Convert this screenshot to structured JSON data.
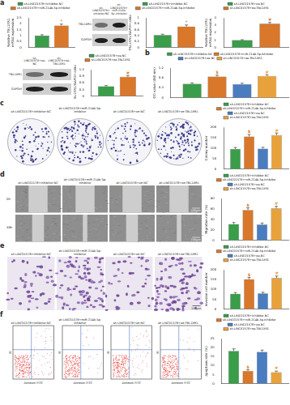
{
  "panel_labels": [
    "a",
    "b",
    "c",
    "d",
    "e",
    "f"
  ],
  "blots": [
    {
      "lanes": [
        "sh-LINC01578+inhibitor-NC",
        "sh-LINC01578+miR-214b-5p-inhibitor"
      ],
      "bands": [
        "TBL1XR1",
        "GAPDH"
      ]
    },
    {
      "lanes": [
        "sh-LINC01578+oe-NC",
        "sh-LINC01578+oe-TBL1XR1"
      ],
      "bands": [
        "TBL1XR1",
        "GAPDH"
      ]
    }
  ],
  "colony_images": {
    "columns": [
      "sh-LINC01578+inhibitor-NC",
      "sh-LINC01578+miR-214b-5p-inhibitor",
      "sh-LINC01578+oe-NC",
      "sh-LINC01578+oe-TBL1XR1"
    ]
  },
  "wound_images": {
    "columns": [
      "sh-LINC01578+inhibitor-NC",
      "sh-LINC01578+miR-214b-5p-inhibitor",
      "sh-LINC01578+oe-NC",
      "sh-LINC01578+oe-TBL1XR1"
    ],
    "rows": [
      "0h",
      "48h"
    ],
    "scale_bar": "100μm"
  },
  "transwell_images": {
    "columns": [
      "sh-LINC01578+inhibitor-NC",
      "sh-LINC01578+miR-214b-5p-inhibitor",
      "sh-LINC01578+oe-NC",
      "sh-LINC01578+oe-TBL1XR1"
    ],
    "scale_bar": "100μm"
  },
  "flow_images": {
    "columns": [
      "sh-LINC01578+inhibitor-NC",
      "sh-LINC01578+miR-214b-5p-inhibitor",
      "sh-LINC01578+oe-NC",
      "sh-LINC01578+oe-TBL1XR1"
    ],
    "x_label": "Annexin FITC",
    "y_label": "PI"
  },
  "chart_data": [
    {
      "type": "bar",
      "y_label": [
        "Relative TBL1XR1",
        "mRNA expression"
      ],
      "categories": [
        null
      ],
      "series": [
        {
          "name": "sh-LINC01578+inhibitor-NC",
          "color": "#3a9d4a",
          "values": [
            1.0
          ],
          "errors": [
            0.08
          ]
        },
        {
          "name": "sh-LINC01578+miR-214b-5p-inhibitor",
          "color": "#d9772b",
          "values": [
            1.86
          ],
          "errors": [
            0.11
          ],
          "annotation": "*"
        }
      ],
      "ylim": [
        0,
        2.5
      ],
      "yticks": [
        0,
        0.5,
        1,
        1.5,
        2,
        2.5
      ],
      "legend": "top",
      "grid": false,
      "tick_labels": "y"
    },
    {
      "type": "bar",
      "y_label": "TBL1XR1/GAPDH ratio",
      "categories": [
        null
      ],
      "series": [
        {
          "name": "sh-LINC01578+inhibitor-NC",
          "color": "#3a9d4a",
          "values": [
            0.42
          ],
          "errors": [
            0.03
          ]
        },
        {
          "name": "sh-LINC01578+miR-214b-5p-inhibitor",
          "color": "#d9772b",
          "values": [
            0.71
          ],
          "errors": [
            0.05
          ],
          "annotation": "*"
        }
      ],
      "ylim": [
        0,
        1
      ],
      "yticks": [
        0,
        0.2,
        0.4,
        0.6,
        0.8,
        1
      ],
      "legend": "top",
      "grid": false,
      "tick_labels": "y"
    },
    {
      "type": "bar",
      "y_label": [
        "Relative TBL1XR1",
        "mRNA expression"
      ],
      "categories": [
        null
      ],
      "series": [
        {
          "name": "sh-LINC01578+oe-NC",
          "color": "#3a9d4a",
          "values": [
            1.0
          ],
          "errors": [
            0.06
          ]
        },
        {
          "name": "sh-LINC01578+oe-TBL1XR1",
          "color": "#d9772b",
          "values": [
            3.2
          ],
          "errors": [
            0.18
          ],
          "annotation": "#"
        }
      ],
      "ylim": [
        0,
        4
      ],
      "yticks": [
        0,
        1,
        2,
        3,
        4
      ],
      "legend": "top",
      "grid": false,
      "tick_labels": "y"
    },
    {
      "type": "bar",
      "y_label": "TBL1XR1/GAPDH ratio",
      "categories": [
        null
      ],
      "series": [
        {
          "name": "sh-LINC01578+oe-NC",
          "color": "#3a9d4a",
          "values": [
            0.45
          ],
          "errors": [
            0.03
          ]
        },
        {
          "name": "sh-LINC01578+oe-TBL1XR1",
          "color": "#d9772b",
          "values": [
            0.88
          ],
          "errors": [
            0.05
          ],
          "annotation": "#"
        }
      ],
      "ylim": [
        0,
        1.2
      ],
      "yticks": [
        0,
        0.3,
        0.6,
        0.9,
        1.2
      ],
      "legend": "top",
      "grid": false,
      "tick_labels": "y"
    },
    {
      "type": "bar",
      "y_label": "OD value (450 nm)",
      "categories": [
        null
      ],
      "series": [
        {
          "name": "sh-LINC01578+inhibitor-NC",
          "color": "#3a9d4a",
          "values": [
            0.56
          ],
          "errors": [
            0.04
          ]
        },
        {
          "name": "sh-LINC01578+miR-214b-5p-inhibitor",
          "color": "#d9772b",
          "values": [
            0.86
          ],
          "errors": [
            0.05
          ],
          "annotation": "$"
        },
        {
          "name": "sh-LINC01578+oe-NC",
          "color": "#4a7cc0",
          "values": [
            0.55
          ],
          "errors": [
            0.04
          ]
        },
        {
          "name": "sh-LINC01578+oe-TBL1XR1",
          "color": "#e9a23b",
          "values": [
            0.88
          ],
          "errors": [
            0.05
          ],
          "annotation": "#"
        }
      ],
      "ylim": [
        0,
        1.2
      ],
      "yticks": [
        0,
        0.4,
        0.8,
        1.2
      ],
      "legend": "top",
      "grid": false,
      "tick_labels": "y"
    },
    {
      "type": "bar",
      "y_label": "Colony number",
      "categories": [
        null
      ],
      "series": [
        {
          "name": "sh-LINC01578+inhibitor-NC",
          "color": "#3a9d4a",
          "values": [
            96
          ],
          "errors": [
            7
          ]
        },
        {
          "name": "sh-LINC01578+miR-214b-5p-inhibitor",
          "color": "#d9772b",
          "values": [
            156
          ],
          "errors": [
            9
          ],
          "annotation": "$"
        },
        {
          "name": "sh-LINC01578+oe-NC",
          "color": "#4a7cc0",
          "values": [
            98
          ],
          "errors": [
            6
          ]
        },
        {
          "name": "sh-LINC01578+oe-TBL1XR1",
          "color": "#e9a23b",
          "values": [
            162
          ],
          "errors": [
            10
          ],
          "annotation": "#"
        }
      ],
      "ylim": [
        0,
        200
      ],
      "yticks": [
        0,
        50,
        100,
        150,
        200
      ],
      "legend": "top",
      "grid": false,
      "tick_labels": "y"
    },
    {
      "type": "bar",
      "y_label": "Migration rate (%)",
      "categories": [
        null
      ],
      "series": [
        {
          "name": "sh-LINC01578+inhibitor-NC",
          "color": "#3a9d4a",
          "values": [
            31
          ],
          "errors": [
            3
          ]
        },
        {
          "name": "sh-LINC01578+miR-214b-5p-inhibitor",
          "color": "#d9772b",
          "values": [
            58
          ],
          "errors": [
            4
          ],
          "annotation": "$"
        },
        {
          "name": "sh-LINC01578+oe-NC",
          "color": "#4a7cc0",
          "values": [
            30
          ],
          "errors": [
            3
          ]
        },
        {
          "name": "sh-LINC01578+oe-TBL1XR1",
          "color": "#e9a23b",
          "values": [
            61
          ],
          "errors": [
            4
          ],
          "annotation": "#"
        }
      ],
      "ylim": [
        0,
        80
      ],
      "yticks": [
        0,
        20,
        40,
        60,
        80
      ],
      "legend": "top",
      "grid": false,
      "tick_labels": "y"
    },
    {
      "type": "bar",
      "y_label": "Invasion cell number",
      "categories": [
        null
      ],
      "series": [
        {
          "name": "sh-LINC01578+inhibitor-NC",
          "color": "#3a9d4a",
          "values": [
            78
          ],
          "errors": [
            6
          ]
        },
        {
          "name": "sh-LINC01578+miR-214b-5p-inhibitor",
          "color": "#d9772b",
          "values": [
            152
          ],
          "errors": [
            9
          ],
          "annotation": "$"
        },
        {
          "name": "sh-LINC01578+oe-NC",
          "color": "#4a7cc0",
          "values": [
            80
          ],
          "errors": [
            6
          ]
        },
        {
          "name": "sh-LINC01578+oe-TBL1XR1",
          "color": "#e9a23b",
          "values": [
            158
          ],
          "errors": [
            10
          ],
          "annotation": "#"
        }
      ],
      "ylim": [
        0,
        200
      ],
      "yticks": [
        0,
        50,
        100,
        150,
        200
      ],
      "legend": "top",
      "grid": false,
      "tick_labels": "y"
    },
    {
      "type": "bar",
      "y_label": "Apoptosis rate (%)",
      "categories": [
        null
      ],
      "series": [
        {
          "name": "sh-LINC01578+inhibitor-NC",
          "color": "#3a9d4a",
          "values": [
            18.2
          ],
          "errors": [
            1.1
          ]
        },
        {
          "name": "sh-LINC01578+miR-214b-5p-inhibitor",
          "color": "#d9772b",
          "values": [
            7.1
          ],
          "errors": [
            0.6
          ],
          "annotation": "$"
        },
        {
          "name": "sh-LINC01578+oe-NC",
          "color": "#4a7cc0",
          "values": [
            17.6
          ],
          "errors": [
            1.0
          ]
        },
        {
          "name": "sh-LINC01578+oe-TBL1XR1",
          "color": "#e9a23b",
          "values": [
            6.4
          ],
          "errors": [
            0.6
          ],
          "annotation": "#"
        }
      ],
      "ylim": [
        0,
        25
      ],
      "yticks": [
        0,
        5,
        10,
        15,
        20,
        25
      ],
      "legend": "top",
      "grid": false,
      "tick_labels": "y"
    }
  ]
}
